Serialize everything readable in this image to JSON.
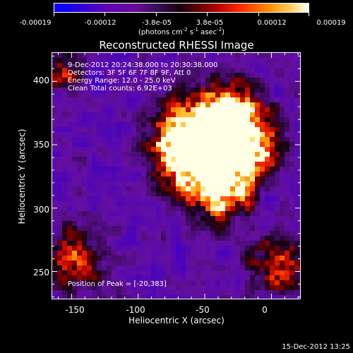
{
  "colorbar": {
    "ticks": [
      "-0.00019",
      "-0.00012",
      "-3.8e-05",
      "3.8e-05",
      "0.00012",
      "0.00019"
    ],
    "units_text": "(photons cm",
    "units_exp1": "-2",
    "units_mid": " s",
    "units_exp2": "-1",
    "units_mid2": " asec",
    "units_exp3": "-2",
    "units_end": ")"
  },
  "title": "Reconstructed RHESSI Image",
  "info_lines": [
    "9-Dec-2012 20:24:38.000 to 20:30:38.000",
    "Detectors: 3F 5F 6F 7F 8F 9F, Att 0",
    "Energy Range: 12.0 - 25.0 keV",
    "Clean     Total counts: 6.92E+03"
  ],
  "peak_label": "Position of Peak = [-20,383]",
  "axes": {
    "xlabel": "Heliocentric X (arcsec)",
    "ylabel": "Heliocentric Y (arcsec)",
    "xticks": [
      "-150",
      "-100",
      "-50",
      "0"
    ],
    "yticks": [
      "250",
      "300",
      "350",
      "400"
    ],
    "xrange": [
      -165,
      22
    ],
    "yrange": [
      228,
      423
    ]
  },
  "timestamp": "15-Dec-2012 13:25",
  "colors": {
    "blue": "#0000ff",
    "purple": "#6a0a9a",
    "dark": "#190010",
    "red": "#b80000",
    "orange": "#ff8a00",
    "yellow": "#ffd060"
  }
}
